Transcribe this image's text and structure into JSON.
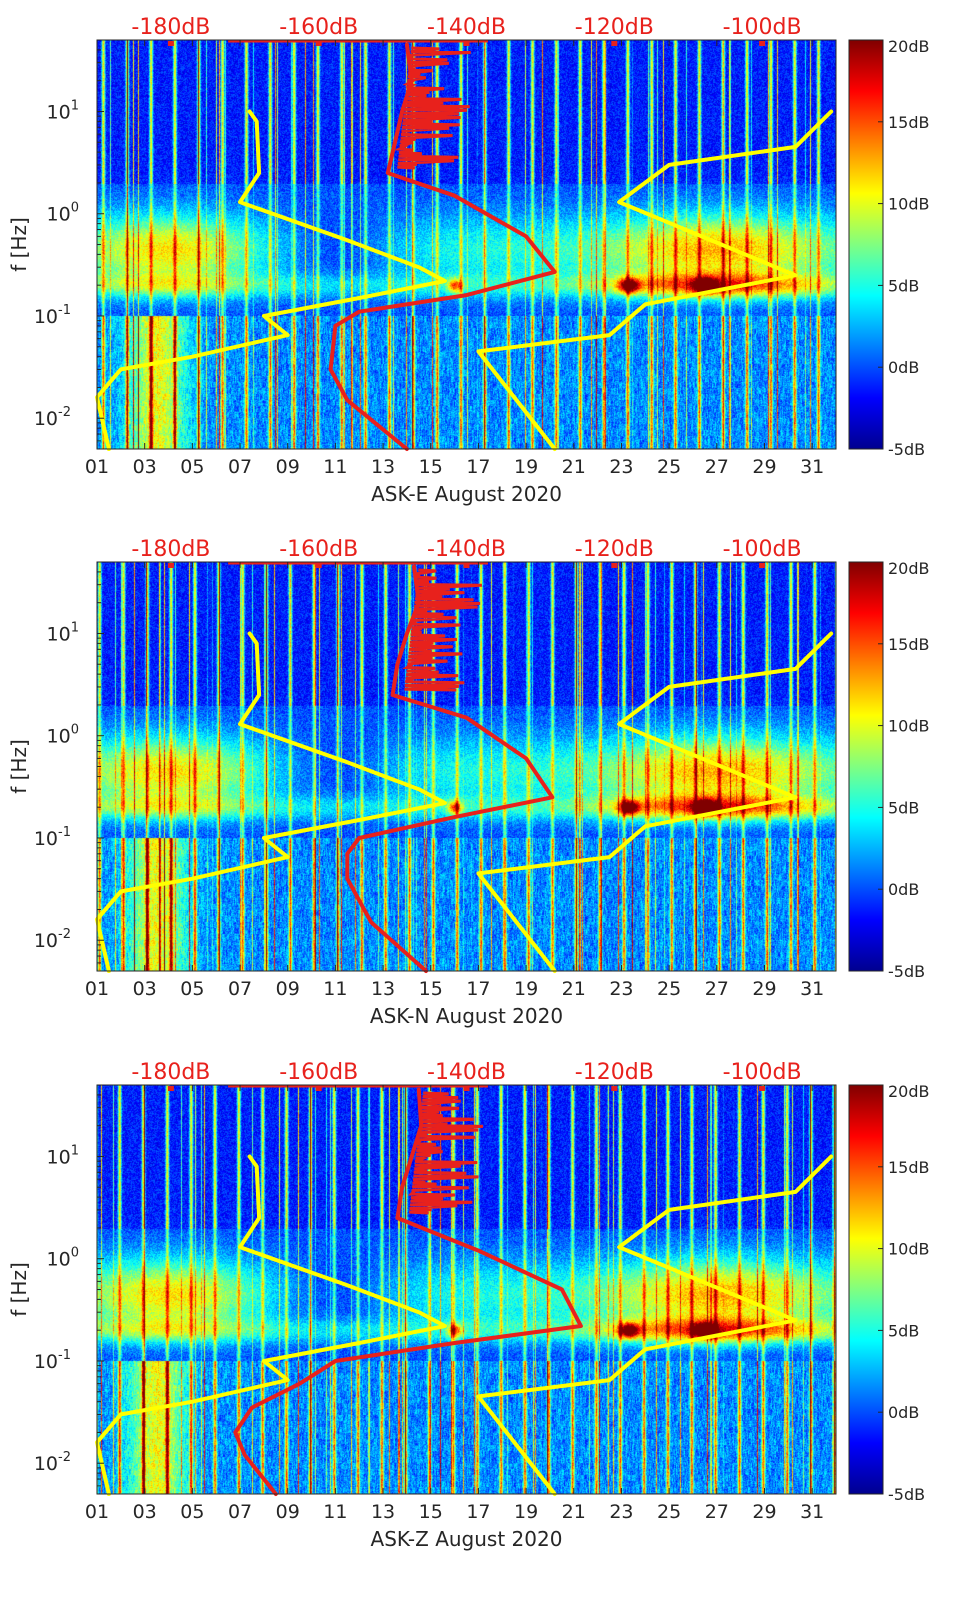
{
  "figure": {
    "ylabel": "f [Hz]",
    "x_ticks": [
      "01",
      "03",
      "05",
      "07",
      "09",
      "11",
      "13",
      "15",
      "17",
      "19",
      "21",
      "23",
      "25",
      "27",
      "29",
      "31"
    ],
    "top_ticks": [
      "-180dB",
      "-160dB",
      "-140dB",
      "-120dB",
      "-100dB"
    ],
    "colorbar_ticks": [
      "20dB",
      "15dB",
      "10dB",
      "5dB",
      "0dB",
      "-5dB"
    ],
    "colormap": [
      "#00008f",
      "#0000ff",
      "#0080ff",
      "#00ffff",
      "#80ff80",
      "#ffff00",
      "#ff8000",
      "#ff0000",
      "#800000"
    ]
  },
  "chart_data": [
    {
      "type": "heatmap",
      "station": "ASK-E",
      "xlabel": "ASK-E August 2020",
      "ylabel": "f [Hz]",
      "x_range": [
        1,
        32
      ],
      "y_scale": "log",
      "y_range": [
        0.005,
        50
      ],
      "y_ticks": [
        {
          "value": 10,
          "base": "10",
          "exp": "1"
        },
        {
          "value": 1,
          "base": "10",
          "exp": "0"
        },
        {
          "value": 0.1,
          "base": "10",
          "exp": "-1"
        },
        {
          "value": 0.01,
          "base": "10",
          "exp": "-2"
        }
      ],
      "top_axis": {
        "range_dB": [
          -190,
          -90
        ],
        "ticks": [
          -180,
          -160,
          -140,
          -120,
          -100
        ]
      },
      "colorbar_range_dB": [
        -5,
        20
      ],
      "curves": [
        {
          "color": "#ffff00",
          "points": [
            [
              7.4,
              10
            ],
            [
              7.7,
              8
            ],
            [
              7.8,
              2.5
            ],
            [
              7.0,
              1.3
            ],
            [
              11.5,
              0.55
            ],
            [
              14.5,
              0.3
            ],
            [
              15.6,
              0.22
            ],
            [
              12.0,
              0.15
            ],
            [
              8.0,
              0.1
            ],
            [
              9.0,
              0.065
            ],
            [
              5.0,
              0.04
            ],
            [
              2.0,
              0.03
            ],
            [
              1.0,
              0.016
            ],
            [
              1.5,
              0.005
            ]
          ]
        },
        {
          "color": "#ffff00",
          "points": [
            [
              31.8,
              10
            ],
            [
              30.3,
              4.5
            ],
            [
              25.0,
              3.0
            ],
            [
              22.9,
              1.3
            ],
            [
              30.3,
              0.25
            ],
            [
              24.0,
              0.13
            ],
            [
              22.5,
              0.065
            ],
            [
              17.0,
              0.045
            ],
            [
              20.2,
              0.005
            ]
          ]
        },
        {
          "color": "#e8211c",
          "points": [
            [
              14.0,
              45
            ],
            [
              14.2,
              20
            ],
            [
              13.8,
              10
            ],
            [
              13.5,
              5
            ],
            [
              13.2,
              2.5
            ],
            [
              16.0,
              1.5
            ],
            [
              19.0,
              0.6
            ],
            [
              20.2,
              0.27
            ],
            [
              16.5,
              0.16
            ],
            [
              12.0,
              0.11
            ],
            [
              11.0,
              0.08
            ],
            [
              10.8,
              0.03
            ],
            [
              11.5,
              0.015
            ],
            [
              14.0,
              0.005
            ]
          ]
        }
      ]
    },
    {
      "type": "heatmap",
      "station": "ASK-N",
      "xlabel": "ASK-N August 2020",
      "ylabel": "f [Hz]",
      "x_range": [
        1,
        32
      ],
      "y_scale": "log",
      "y_range": [
        0.005,
        50
      ],
      "y_ticks": [
        {
          "value": 10,
          "base": "10",
          "exp": "1"
        },
        {
          "value": 1,
          "base": "10",
          "exp": "0"
        },
        {
          "value": 0.1,
          "base": "10",
          "exp": "-1"
        },
        {
          "value": 0.01,
          "base": "10",
          "exp": "-2"
        }
      ],
      "top_axis": {
        "range_dB": [
          -190,
          -90
        ],
        "ticks": [
          -180,
          -160,
          -140,
          -120,
          -100
        ]
      },
      "colorbar_range_dB": [
        -5,
        20
      ],
      "curves": [
        {
          "color": "#ffff00",
          "points": [
            [
              7.4,
              10
            ],
            [
              7.7,
              8
            ],
            [
              7.8,
              2.5
            ],
            [
              7.0,
              1.3
            ],
            [
              11.5,
              0.55
            ],
            [
              14.5,
              0.3
            ],
            [
              15.6,
              0.22
            ],
            [
              12.0,
              0.15
            ],
            [
              8.0,
              0.1
            ],
            [
              9.0,
              0.065
            ],
            [
              5.0,
              0.04
            ],
            [
              2.0,
              0.03
            ],
            [
              1.0,
              0.016
            ],
            [
              1.5,
              0.005
            ]
          ]
        },
        {
          "color": "#ffff00",
          "points": [
            [
              31.8,
              10
            ],
            [
              30.3,
              4.5
            ],
            [
              25.0,
              3.0
            ],
            [
              22.9,
              1.3
            ],
            [
              30.3,
              0.25
            ],
            [
              24.0,
              0.13
            ],
            [
              22.5,
              0.065
            ],
            [
              17.0,
              0.045
            ],
            [
              20.2,
              0.005
            ]
          ]
        },
        {
          "color": "#e8211c",
          "points": [
            [
              14.3,
              45
            ],
            [
              14.5,
              20
            ],
            [
              14.0,
              10
            ],
            [
              13.6,
              5
            ],
            [
              13.4,
              2.5
            ],
            [
              16.5,
              1.5
            ],
            [
              19.0,
              0.6
            ],
            [
              20.1,
              0.25
            ],
            [
              16.0,
              0.16
            ],
            [
              12.0,
              0.1
            ],
            [
              11.5,
              0.07
            ],
            [
              11.5,
              0.04
            ],
            [
              12.5,
              0.015
            ],
            [
              14.8,
              0.005
            ]
          ]
        }
      ]
    },
    {
      "type": "heatmap",
      "station": "ASK-Z",
      "xlabel": "ASK-Z August 2020",
      "ylabel": "f [Hz]",
      "x_range": [
        1,
        32
      ],
      "y_scale": "log",
      "y_range": [
        0.005,
        50
      ],
      "y_ticks": [
        {
          "value": 10,
          "base": "10",
          "exp": "1"
        },
        {
          "value": 1,
          "base": "10",
          "exp": "0"
        },
        {
          "value": 0.1,
          "base": "10",
          "exp": "-1"
        },
        {
          "value": 0.01,
          "base": "10",
          "exp": "-2"
        }
      ],
      "top_axis": {
        "range_dB": [
          -190,
          -90
        ],
        "ticks": [
          -180,
          -160,
          -140,
          -120,
          -100
        ]
      },
      "colorbar_range_dB": [
        -5,
        20
      ],
      "curves": [
        {
          "color": "#ffff00",
          "points": [
            [
              7.4,
              10
            ],
            [
              7.7,
              8
            ],
            [
              7.8,
              2.5
            ],
            [
              7.0,
              1.3
            ],
            [
              11.5,
              0.55
            ],
            [
              14.5,
              0.3
            ],
            [
              15.6,
              0.22
            ],
            [
              12.0,
              0.15
            ],
            [
              8.0,
              0.1
            ],
            [
              9.0,
              0.065
            ],
            [
              5.0,
              0.04
            ],
            [
              2.0,
              0.03
            ],
            [
              1.0,
              0.016
            ],
            [
              1.5,
              0.005
            ]
          ]
        },
        {
          "color": "#ffff00",
          "points": [
            [
              31.8,
              10
            ],
            [
              30.3,
              4.5
            ],
            [
              25.0,
              3.0
            ],
            [
              22.9,
              1.3
            ],
            [
              30.3,
              0.25
            ],
            [
              24.0,
              0.13
            ],
            [
              22.5,
              0.065
            ],
            [
              17.0,
              0.045
            ],
            [
              20.2,
              0.005
            ]
          ]
        },
        {
          "color": "#e8211c",
          "points": [
            [
              14.5,
              45
            ],
            [
              14.6,
              20
            ],
            [
              14.2,
              10
            ],
            [
              13.8,
              5
            ],
            [
              13.6,
              2.5
            ],
            [
              17.0,
              1.2
            ],
            [
              20.5,
              0.5
            ],
            [
              21.3,
              0.22
            ],
            [
              16.0,
              0.15
            ],
            [
              11.0,
              0.1
            ],
            [
              9.5,
              0.06
            ],
            [
              7.5,
              0.035
            ],
            [
              6.8,
              0.02
            ],
            [
              7.2,
              0.012
            ],
            [
              8.5,
              0.005
            ]
          ]
        }
      ]
    }
  ]
}
